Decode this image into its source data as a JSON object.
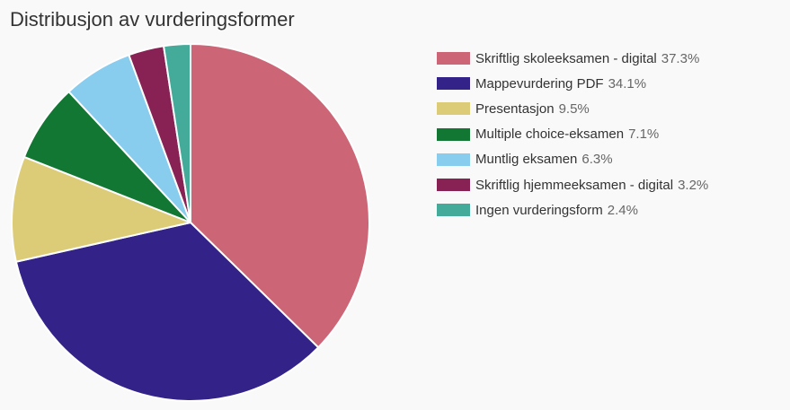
{
  "chart_data": {
    "type": "pie",
    "title": "Distribusjon av vurderingsformer",
    "legend_position": "right",
    "slices": [
      {
        "label": "Skriftlig skoleeksamen - digital",
        "value": 37.3,
        "display": "37.3%",
        "color": "#cc6677"
      },
      {
        "label": "Mappevurdering PDF",
        "value": 34.1,
        "display": "34.1%",
        "color": "#332288"
      },
      {
        "label": "Presentasjon",
        "value": 9.5,
        "display": "9.5%",
        "color": "#ddcc77"
      },
      {
        "label": "Multiple choice-eksamen",
        "value": 7.1,
        "display": "7.1%",
        "color": "#117733"
      },
      {
        "label": "Muntlig eksamen",
        "value": 6.3,
        "display": "6.3%",
        "color": "#88ccee"
      },
      {
        "label": "Skriftlig hjemmeeksamen - digital",
        "value": 3.2,
        "display": "3.2%",
        "color": "#882255"
      },
      {
        "label": "Ingen vurderingsform",
        "value": 2.4,
        "display": "2.4%",
        "color": "#44aa99"
      }
    ]
  }
}
